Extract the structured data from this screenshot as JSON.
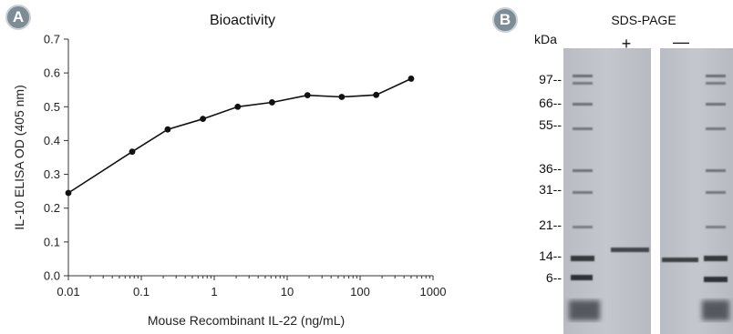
{
  "panel_a": {
    "badge": "A",
    "chart_data": {
      "type": "line",
      "title": "Bioactivity",
      "xlabel": "Mouse Recombinant IL-22 (ng/mL)",
      "ylabel": "IL-10 ELISA OD (405 nm)",
      "x_scale": "log",
      "xlim": [
        0.01,
        1000
      ],
      "ylim": [
        0,
        0.7
      ],
      "x_ticks": [
        "0.01",
        "0.1",
        "1",
        "10",
        "100",
        "1000"
      ],
      "y_ticks": [
        "0.0",
        "0.1",
        "0.2",
        "0.3",
        "0.4",
        "0.5",
        "0.6",
        "0.7"
      ],
      "grid": false,
      "series": [
        {
          "x": [
            0.01,
            0.075,
            0.23,
            0.7,
            2.1,
            6.2,
            19,
            56,
            166,
            500
          ],
          "y": [
            0.245,
            0.367,
            0.433,
            0.464,
            0.5,
            0.513,
            0.534,
            0.529,
            0.535,
            0.583
          ]
        }
      ],
      "color": "#111111"
    }
  },
  "panel_b": {
    "badge": "B",
    "title": "SDS-PAGE",
    "unit_label": "kDa",
    "lane_plus": "+",
    "lane_minus": "—",
    "markers": [
      "97--",
      "66--",
      "55--",
      "36--",
      "31--",
      "21--",
      "14--",
      "6--"
    ]
  }
}
